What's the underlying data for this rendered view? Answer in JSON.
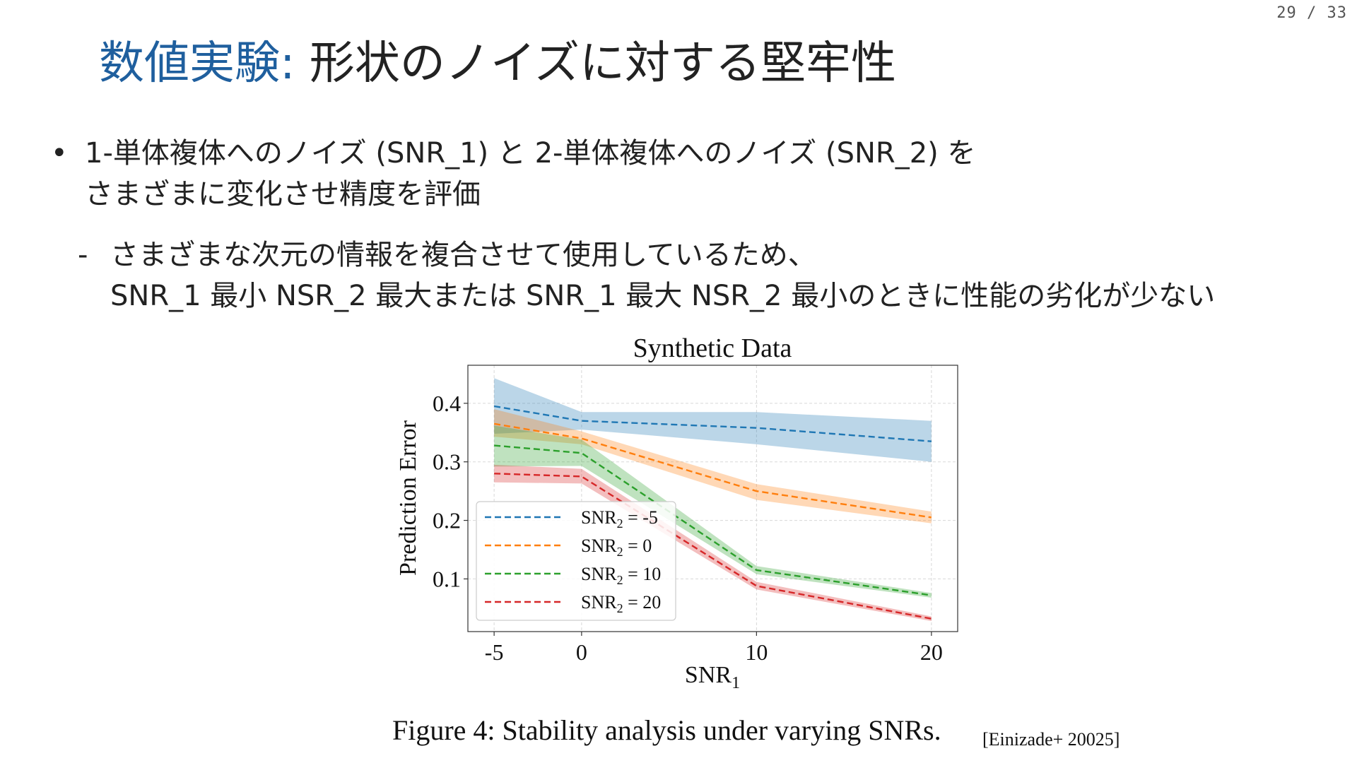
{
  "page_number": "29 / 33",
  "title": {
    "accent": "数値実験:",
    "rest": " 形状のノイズに対する堅牢性"
  },
  "bullet": {
    "marker": "•",
    "line1": "1-単体複体へのノイズ (SNR_1) と 2-単体複体へのノイズ (SNR_2) を",
    "line2": "さまざまに変化させ精度を評価"
  },
  "sub_bullet": {
    "marker": "-",
    "line1": "さまざまな次元の情報を複合させて使用しているため、",
    "line2": "SNR_1 最小 NSR_2 最大または SNR_1 最大 NSR_2 最小のときに性能の劣化が少ない"
  },
  "figure_caption": "Figure 4:  Stability analysis under varying SNRs.",
  "citation": "[Einizade+ 20025]",
  "chart_data": {
    "type": "line",
    "title": "Synthetic Data",
    "xlabel": "SNR",
    "xlabel_sub": "1",
    "ylabel": "Prediction Error",
    "x": [
      -5,
      0,
      10,
      20
    ],
    "x_tick_labels": [
      "-5",
      "0",
      "10",
      "20"
    ],
    "y_ticks": [
      0.1,
      0.2,
      0.3,
      0.4
    ],
    "y_tick_labels": [
      "0.1",
      "0.2",
      "0.3",
      "0.4"
    ],
    "xlim": [
      -6.5,
      21.5
    ],
    "ylim": [
      0.01,
      0.465
    ],
    "grid": true,
    "legend_position": "lower-left",
    "series": [
      {
        "name": "SNR",
        "name_sub": "2",
        "name_suffix": " = -5",
        "color": "#1f77b4",
        "values": [
          0.395,
          0.37,
          0.358,
          0.335
        ],
        "band_lower": [
          0.348,
          0.355,
          0.33,
          0.3
        ],
        "band_upper": [
          0.443,
          0.385,
          0.385,
          0.37
        ]
      },
      {
        "name": "SNR",
        "name_sub": "2",
        "name_suffix": " = 0",
        "color": "#ff7f0e",
        "values": [
          0.365,
          0.34,
          0.25,
          0.205
        ],
        "band_lower": [
          0.343,
          0.33,
          0.235,
          0.195
        ],
        "band_upper": [
          0.39,
          0.352,
          0.262,
          0.215
        ]
      },
      {
        "name": "SNR",
        "name_sub": "2",
        "name_suffix": " = 10",
        "color": "#2ca02c",
        "values": [
          0.328,
          0.315,
          0.115,
          0.072
        ],
        "band_lower": [
          0.292,
          0.293,
          0.108,
          0.068
        ],
        "band_upper": [
          0.362,
          0.338,
          0.122,
          0.076
        ]
      },
      {
        "name": "SNR",
        "name_sub": "2",
        "name_suffix": " = 20",
        "color": "#d62728",
        "values": [
          0.28,
          0.275,
          0.088,
          0.032
        ],
        "band_lower": [
          0.265,
          0.263,
          0.082,
          0.028
        ],
        "band_upper": [
          0.295,
          0.288,
          0.095,
          0.036
        ]
      }
    ]
  }
}
